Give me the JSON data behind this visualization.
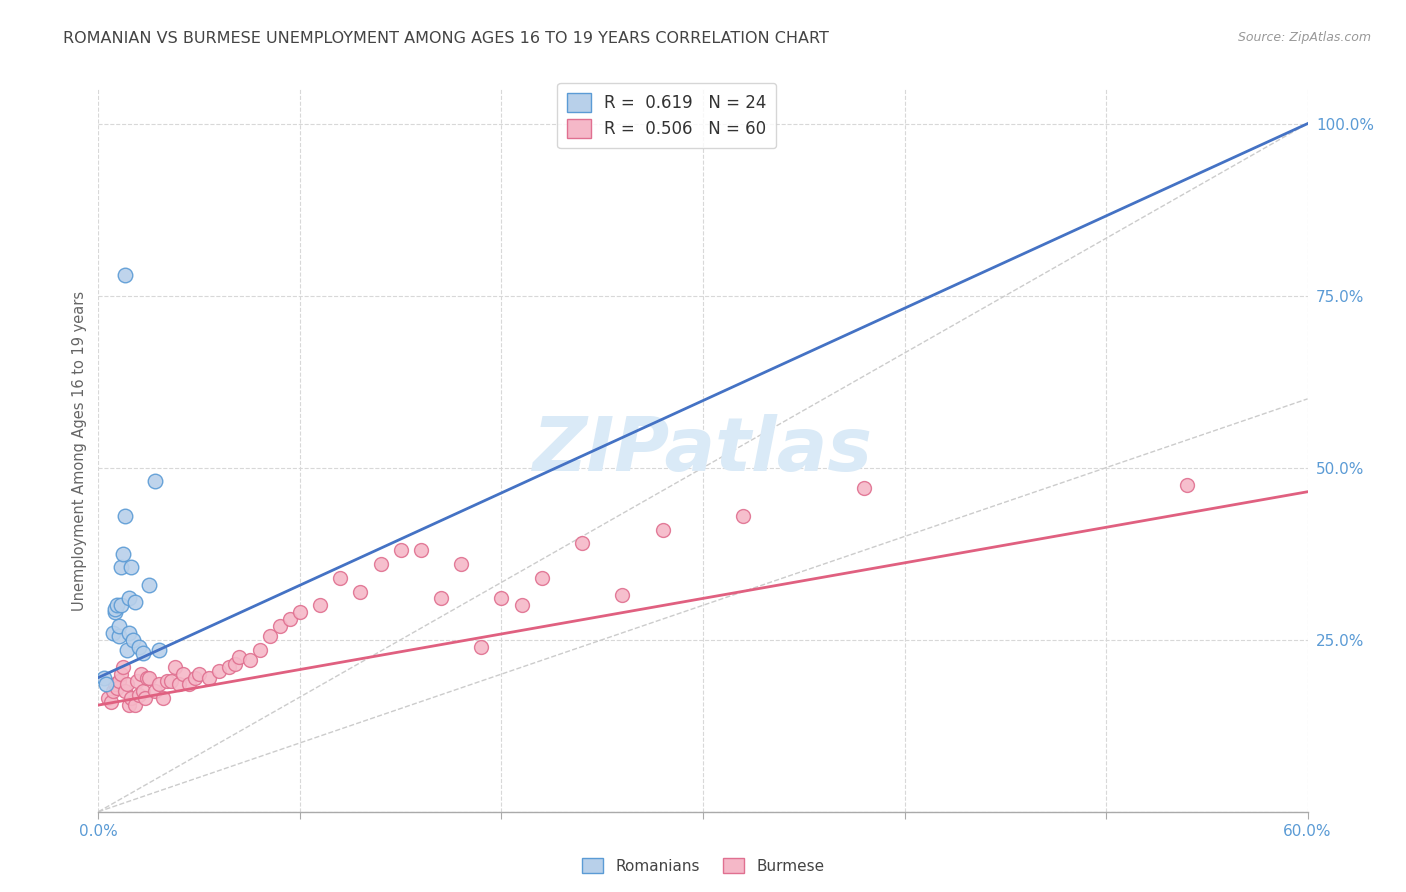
{
  "title": "ROMANIAN VS BURMESE UNEMPLOYMENT AMONG AGES 16 TO 19 YEARS CORRELATION CHART",
  "source": "Source: ZipAtlas.com",
  "ylabel": "Unemployment Among Ages 16 to 19 years",
  "xlim": [
    0.0,
    0.6
  ],
  "ylim": [
    0.0,
    1.05
  ],
  "x_ticks": [
    0.0,
    0.1,
    0.2,
    0.3,
    0.4,
    0.5,
    0.6
  ],
  "y_ticks_right": [
    0.0,
    0.25,
    0.5,
    0.75,
    1.0
  ],
  "background_color": "#ffffff",
  "grid_color": "#d8d8d8",
  "title_color": "#444444",
  "axis_color": "#5b9bd5",
  "watermark_text": "ZIPatlas",
  "watermark_color": "#daeaf7",
  "romanian_x": [
    0.003,
    0.004,
    0.007,
    0.008,
    0.008,
    0.009,
    0.01,
    0.01,
    0.011,
    0.011,
    0.012,
    0.013,
    0.013,
    0.014,
    0.015,
    0.015,
    0.016,
    0.017,
    0.018,
    0.02,
    0.022,
    0.025,
    0.028,
    0.03
  ],
  "romanian_y": [
    0.195,
    0.185,
    0.26,
    0.29,
    0.295,
    0.3,
    0.255,
    0.27,
    0.3,
    0.355,
    0.375,
    0.43,
    0.78,
    0.235,
    0.26,
    0.31,
    0.355,
    0.25,
    0.305,
    0.24,
    0.23,
    0.33,
    0.48,
    0.235
  ],
  "burmese_x": [
    0.005,
    0.006,
    0.007,
    0.008,
    0.009,
    0.01,
    0.011,
    0.012,
    0.013,
    0.014,
    0.015,
    0.016,
    0.018,
    0.019,
    0.02,
    0.021,
    0.022,
    0.023,
    0.024,
    0.025,
    0.028,
    0.03,
    0.032,
    0.034,
    0.036,
    0.038,
    0.04,
    0.042,
    0.045,
    0.048,
    0.05,
    0.055,
    0.06,
    0.065,
    0.068,
    0.07,
    0.075,
    0.08,
    0.085,
    0.09,
    0.095,
    0.1,
    0.11,
    0.12,
    0.13,
    0.14,
    0.15,
    0.16,
    0.17,
    0.18,
    0.19,
    0.2,
    0.21,
    0.22,
    0.24,
    0.26,
    0.28,
    0.32,
    0.38,
    0.54
  ],
  "burmese_y": [
    0.165,
    0.16,
    0.175,
    0.185,
    0.18,
    0.19,
    0.2,
    0.21,
    0.175,
    0.185,
    0.155,
    0.165,
    0.155,
    0.19,
    0.17,
    0.2,
    0.175,
    0.165,
    0.195,
    0.195,
    0.175,
    0.185,
    0.165,
    0.19,
    0.19,
    0.21,
    0.185,
    0.2,
    0.185,
    0.195,
    0.2,
    0.195,
    0.205,
    0.21,
    0.215,
    0.225,
    0.22,
    0.235,
    0.255,
    0.27,
    0.28,
    0.29,
    0.3,
    0.34,
    0.32,
    0.36,
    0.38,
    0.38,
    0.31,
    0.36,
    0.24,
    0.31,
    0.3,
    0.34,
    0.39,
    0.315,
    0.41,
    0.43,
    0.47,
    0.475
  ],
  "romanian_color": "#b8d0ea",
  "romanian_edge_color": "#5b9bd5",
  "burmese_color": "#f5b8c8",
  "burmese_edge_color": "#e07090",
  "romanian_line_color": "#4472c4",
  "burmese_line_color": "#e06080",
  "diagonal_color": "#cccccc",
  "legend_text_romanian": "R =  0.619   N = 24",
  "legend_text_burmese": "R =  0.506   N = 60",
  "legend_label_romanians": "Romanians",
  "legend_label_burmese": "Burmese",
  "romanian_line_x0": 0.0,
  "romanian_line_y0": 0.195,
  "romanian_line_x1": 0.6,
  "romanian_line_y1": 1.0,
  "burmese_line_x0": 0.0,
  "burmese_line_y0": 0.155,
  "burmese_line_x1": 0.6,
  "burmese_line_y1": 0.465
}
